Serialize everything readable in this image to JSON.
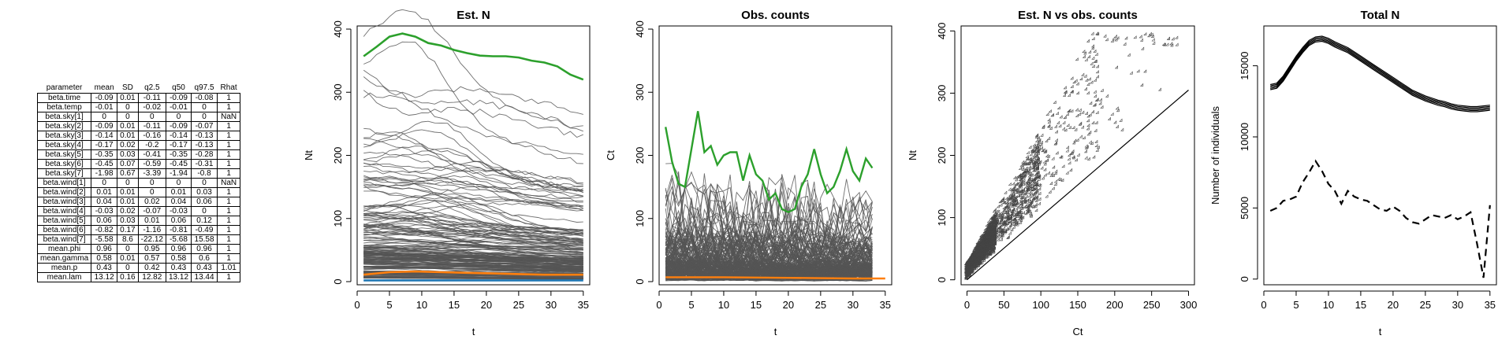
{
  "table": {
    "columns": [
      "parameter",
      "mean",
      "SD",
      "q2.5",
      "q50",
      "q97.5",
      "Rhat"
    ],
    "rows": [
      [
        "beta.time",
        "-0.09",
        "0.01",
        "-0.11",
        "-0.09",
        "-0.08",
        "1"
      ],
      [
        "beta.temp",
        "-0.01",
        "0",
        "-0.02",
        "-0.01",
        "0",
        "1"
      ],
      [
        "beta.sky[1]",
        "0",
        "0",
        "0",
        "0",
        "0",
        "NaN"
      ],
      [
        "beta.sky[2]",
        "-0.09",
        "0.01",
        "-0.11",
        "-0.09",
        "-0.07",
        "1"
      ],
      [
        "beta.sky[3]",
        "-0.14",
        "0.01",
        "-0.16",
        "-0.14",
        "-0.13",
        "1"
      ],
      [
        "beta.sky[4]",
        "-0.17",
        "0.02",
        "-0.2",
        "-0.17",
        "-0.13",
        "1"
      ],
      [
        "beta.sky[5]",
        "-0.35",
        "0.03",
        "-0.41",
        "-0.35",
        "-0.28",
        "1"
      ],
      [
        "beta.sky[6]",
        "-0.45",
        "0.07",
        "-0.59",
        "-0.45",
        "-0.31",
        "1"
      ],
      [
        "beta.sky[7]",
        "-1.98",
        "0.67",
        "-3.39",
        "-1.94",
        "-0.8",
        "1"
      ],
      [
        "beta.wind[1]",
        "0",
        "0",
        "0",
        "0",
        "0",
        "NaN"
      ],
      [
        "beta.wind[2]",
        "0.01",
        "0.01",
        "0",
        "0.01",
        "0.03",
        "1"
      ],
      [
        "beta.wind[3]",
        "0.04",
        "0.01",
        "0.02",
        "0.04",
        "0.06",
        "1"
      ],
      [
        "beta.wind[4]",
        "-0.03",
        "0.02",
        "-0.07",
        "-0.03",
        "0",
        "1"
      ],
      [
        "beta.wind[5]",
        "0.06",
        "0.03",
        "0.01",
        "0.06",
        "0.12",
        "1"
      ],
      [
        "beta.wind[6]",
        "-0.82",
        "0.17",
        "-1.16",
        "-0.81",
        "-0.49",
        "1"
      ],
      [
        "beta.wind[7]",
        "-5.58",
        "8.6",
        "-22.12",
        "-5.68",
        "15.58",
        "1"
      ],
      [
        "mean.phi",
        "0.96",
        "0",
        "0.95",
        "0.96",
        "0.96",
        "1"
      ],
      [
        "mean.gamma",
        "0.58",
        "0.01",
        "0.57",
        "0.58",
        "0.6",
        "1"
      ],
      [
        "mean.p",
        "0.43",
        "0",
        "0.42",
        "0.43",
        "0.43",
        "1.01"
      ],
      [
        "mean.lam",
        "13.12",
        "0.16",
        "12.82",
        "13.12",
        "13.44",
        "1"
      ]
    ]
  },
  "colors": {
    "axis": "#000000",
    "traces": "#555555",
    "green": "#2ca02c",
    "orange": "#ff7f0e",
    "blue": "#1f77b4"
  },
  "chart_data": [
    {
      "type": "line",
      "title": "Est. N",
      "xlabel": "t",
      "ylabel": "Nt",
      "xlim": [
        0,
        36
      ],
      "ylim": [
        -5,
        405
      ],
      "xticks": [
        0,
        5,
        10,
        15,
        20,
        25,
        30,
        35
      ],
      "yticks": [
        0,
        100,
        200,
        300,
        400
      ],
      "background_traces": "about 200 grey site trajectories, t = 1 to 35, mostly between 0 and 150, a few reaching up to about 365",
      "series": [
        {
          "color": "green",
          "x": [
            1,
            3,
            5,
            7,
            9,
            11,
            13,
            15,
            17,
            19,
            21,
            23,
            25,
            27,
            29,
            31,
            33,
            35
          ],
          "y": [
            357,
            372,
            388,
            393,
            388,
            378,
            374,
            367,
            362,
            358,
            357,
            357,
            355,
            350,
            347,
            341,
            328,
            320
          ]
        },
        {
          "color": "orange",
          "x": [
            1,
            5,
            9,
            13,
            17,
            21,
            25,
            29,
            33,
            35
          ],
          "y": [
            11,
            15,
            16,
            15,
            14,
            13,
            12,
            11,
            11,
            11
          ]
        },
        {
          "color": "blue",
          "x": [
            1,
            35
          ],
          "y": [
            2,
            2
          ]
        }
      ]
    },
    {
      "type": "line",
      "title": "Obs. counts",
      "xlabel": "t",
      "ylabel": "Ct",
      "xlim": [
        0,
        36
      ],
      "ylim": [
        -5,
        405
      ],
      "xticks": [
        0,
        5,
        10,
        15,
        20,
        25,
        30,
        35
      ],
      "yticks": [
        0,
        100,
        200,
        300,
        400
      ],
      "background_traces": "about 200 grey site count series, t = 1 to 33, mostly between 0 and 150, peaks up to about 290",
      "series": [
        {
          "color": "green",
          "x": [
            1,
            2,
            3,
            4,
            5,
            6,
            7,
            8,
            9,
            10,
            11,
            12,
            13,
            14,
            15,
            16,
            17,
            18,
            19,
            20,
            21,
            22,
            23,
            24,
            25,
            26,
            27,
            28,
            29,
            30,
            31,
            32,
            33
          ],
          "y": [
            245,
            190,
            155,
            150,
            210,
            270,
            205,
            215,
            185,
            200,
            205,
            205,
            160,
            200,
            170,
            160,
            130,
            140,
            115,
            110,
            115,
            150,
            170,
            210,
            170,
            140,
            150,
            175,
            210,
            175,
            160,
            195,
            180
          ]
        },
        {
          "color": "orange",
          "x": [
            1,
            10,
            20,
            30,
            35
          ],
          "y": [
            7,
            7,
            6,
            5,
            5
          ]
        }
      ]
    },
    {
      "type": "scatter",
      "title": "Est. N vs obs. counts",
      "xlabel": "Ct",
      "ylabel": "Nt",
      "xlim": [
        -8,
        308
      ],
      "ylim": [
        -8,
        408
      ],
      "xticks": [
        0,
        50,
        100,
        150,
        200,
        250,
        300
      ],
      "yticks": [
        0,
        100,
        200,
        300,
        400
      ],
      "marker": "open diamond",
      "reference_line": {
        "x": [
          0,
          300
        ],
        "y": [
          0,
          305
        ]
      },
      "points_description": "several thousand points from (0,0) up to about (290, 390), mostly above the reference line, densest near the origin"
    },
    {
      "type": "line",
      "title": "Total N",
      "xlabel": "t",
      "ylabel": "Number of individuals",
      "xlim": [
        0,
        36
      ],
      "ylim": [
        -400,
        17800
      ],
      "xticks": [
        0,
        5,
        10,
        15,
        20,
        25,
        30,
        35
      ],
      "yticks": [
        0,
        5000,
        10000,
        15000
      ],
      "series": [
        {
          "style": "solid",
          "x": [
            1,
            2,
            3,
            4,
            5,
            6,
            7,
            8,
            9,
            10,
            11,
            12,
            13,
            14,
            15,
            16,
            17,
            18,
            19,
            20,
            21,
            22,
            23,
            24,
            25,
            26,
            27,
            28,
            29,
            30,
            31,
            32,
            33,
            34,
            35
          ],
          "y": [
            13500,
            13600,
            14100,
            14800,
            15500,
            16100,
            16600,
            16850,
            16900,
            16750,
            16500,
            16300,
            16100,
            15800,
            15500,
            15200,
            14900,
            14600,
            14300,
            14000,
            13700,
            13400,
            13100,
            12900,
            12700,
            12550,
            12400,
            12300,
            12150,
            12050,
            12000,
            11950,
            11950,
            12000,
            12050
          ]
        },
        {
          "style": "dashed",
          "x": [
            1,
            2,
            3,
            4,
            5,
            6,
            7,
            8,
            9,
            10,
            11,
            12,
            13,
            14,
            15,
            16,
            17,
            18,
            19,
            20,
            21,
            22,
            23,
            24,
            25,
            26,
            27,
            28,
            29,
            30,
            31,
            32,
            33,
            34,
            35
          ],
          "y": [
            4800,
            5000,
            5500,
            5600,
            5800,
            6800,
            7500,
            8300,
            7600,
            6700,
            6200,
            5300,
            6200,
            5800,
            5600,
            5500,
            5200,
            4900,
            4800,
            5100,
            4800,
            4300,
            4000,
            3900,
            4200,
            4500,
            4400,
            4300,
            4500,
            4200,
            4400,
            4700,
            2500,
            100,
            5200
          ]
        }
      ]
    }
  ]
}
